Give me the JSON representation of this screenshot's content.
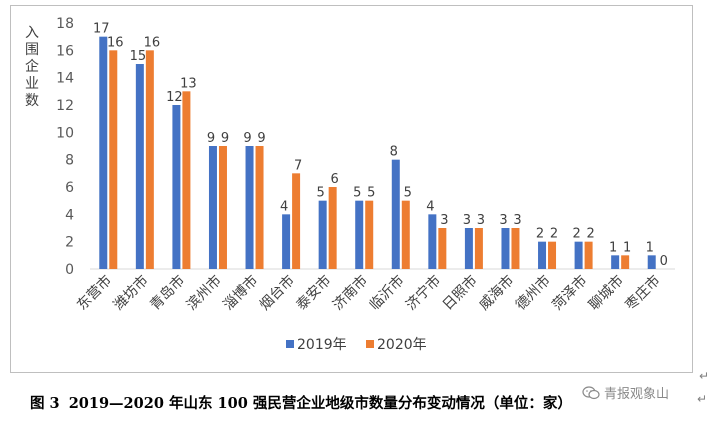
{
  "chart_data": {
    "type": "bar",
    "ylabel": "入围企业数",
    "ylim": [
      0,
      18
    ],
    "yticks": [
      0,
      2,
      4,
      6,
      8,
      10,
      12,
      14,
      16,
      18
    ],
    "grid": false,
    "legend_position": "bottom",
    "categories": [
      "东营市",
      "潍坊市",
      "青岛市",
      "滨州市",
      "淄博市",
      "烟台市",
      "泰安市",
      "济南市",
      "临沂市",
      "济宁市",
      "日照市",
      "威海市",
      "德州市",
      "菏泽市",
      "聊城市",
      "枣庄市"
    ],
    "series": [
      {
        "name": "2019年",
        "color": "#4472c4",
        "values": [
          17,
          15,
          12,
          9,
          9,
          4,
          5,
          5,
          8,
          4,
          3,
          3,
          2,
          2,
          1,
          1
        ]
      },
      {
        "name": "2020年",
        "color": "#ed7d31",
        "values": [
          16,
          16,
          13,
          9,
          9,
          7,
          6,
          5,
          5,
          3,
          3,
          3,
          2,
          2,
          1,
          0
        ]
      }
    ]
  },
  "caption": {
    "label": "图 3",
    "text": "2019—2020 年山东 100 强民营企业地级市数量分布变动情况（单位：家）"
  },
  "watermark": {
    "text": "青报观象山",
    "icon": "wechat-icon"
  },
  "return_mark": "↵"
}
